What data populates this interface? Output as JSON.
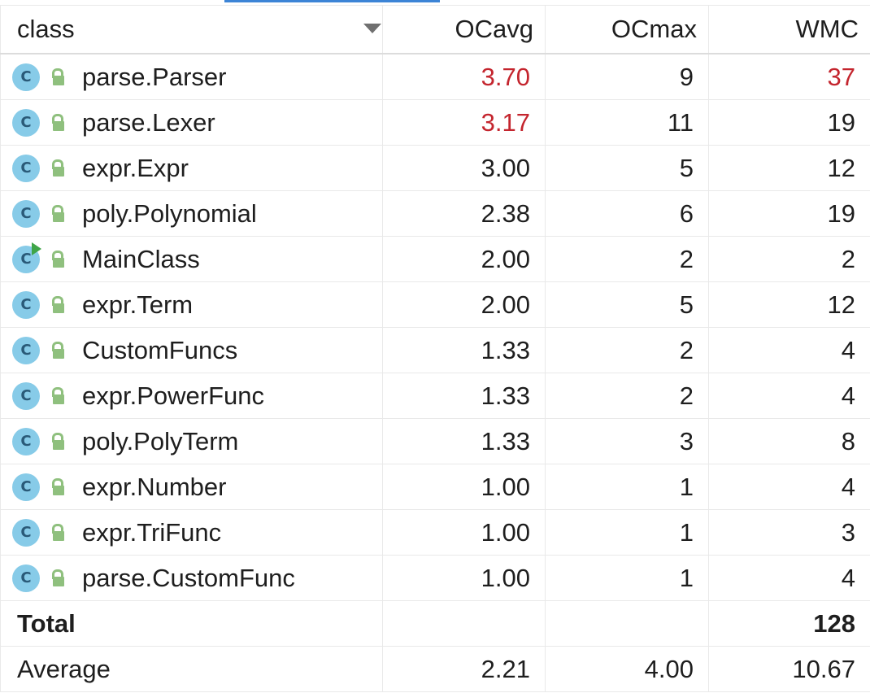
{
  "columns": [
    "class",
    "OCavg",
    "OCmax",
    "WMC"
  ],
  "colors": {
    "warning_text": "#c4252e",
    "class_icon": "#87cbe8",
    "lock_icon": "#8fc07e",
    "run_badge": "#3fa548",
    "tab_accent": "#3c84d6"
  },
  "rows": [
    {
      "name": "parse.Parser",
      "ocavg": "3.70",
      "ocmax": "9",
      "wmc": "37"
    },
    {
      "name": "parse.Lexer",
      "ocavg": "3.17",
      "ocmax": "11",
      "wmc": "19"
    },
    {
      "name": "expr.Expr",
      "ocavg": "3.00",
      "ocmax": "5",
      "wmc": "12"
    },
    {
      "name": "poly.Polynomial",
      "ocavg": "2.38",
      "ocmax": "6",
      "wmc": "19"
    },
    {
      "name": "MainClass",
      "ocavg": "2.00",
      "ocmax": "2",
      "wmc": "2"
    },
    {
      "name": "expr.Term",
      "ocavg": "2.00",
      "ocmax": "5",
      "wmc": "12"
    },
    {
      "name": "CustomFuncs",
      "ocavg": "1.33",
      "ocmax": "2",
      "wmc": "4"
    },
    {
      "name": "expr.PowerFunc",
      "ocavg": "1.33",
      "ocmax": "2",
      "wmc": "4"
    },
    {
      "name": "poly.PolyTerm",
      "ocavg": "1.33",
      "ocmax": "3",
      "wmc": "8"
    },
    {
      "name": "expr.Number",
      "ocavg": "1.00",
      "ocmax": "1",
      "wmc": "4"
    },
    {
      "name": "expr.TriFunc",
      "ocavg": "1.00",
      "ocmax": "1",
      "wmc": "3"
    },
    {
      "name": "parse.CustomFunc",
      "ocavg": "1.00",
      "ocmax": "1",
      "wmc": "4"
    }
  ],
  "total": {
    "label": "Total",
    "ocavg": "",
    "ocmax": "",
    "wmc": "128"
  },
  "average": {
    "label": "Average",
    "ocavg": "2.21",
    "ocmax": "4.00",
    "wmc": "10.67"
  }
}
